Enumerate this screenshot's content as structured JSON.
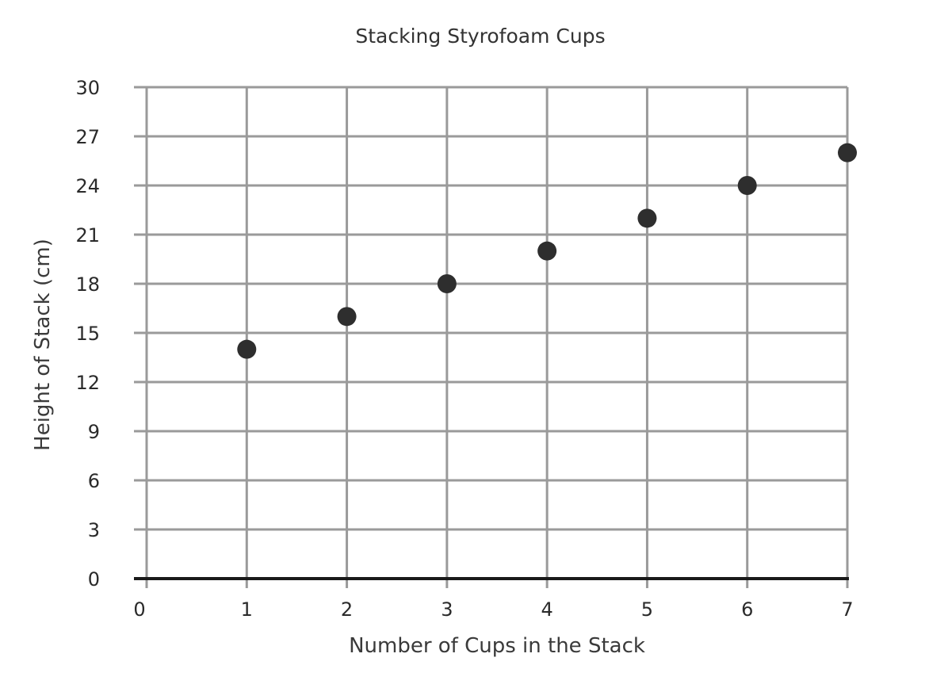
{
  "chart_data": {
    "type": "scatter",
    "title": "Stacking Styrofoam Cups",
    "xlabel": "Number of Cups in the Stack",
    "ylabel": "Height of Stack (cm)",
    "xlim": [
      0,
      7
    ],
    "ylim": [
      0,
      30
    ],
    "x_ticks": [
      "0",
      "1",
      "2",
      "3",
      "4",
      "5",
      "6",
      "7"
    ],
    "y_ticks": [
      "0",
      "3",
      "6",
      "9",
      "12",
      "15",
      "18",
      "21",
      "24",
      "27",
      "30"
    ],
    "grid": true,
    "point_color": "#2e2e2e",
    "points": [
      {
        "x": 1,
        "y": 14
      },
      {
        "x": 2,
        "y": 16
      },
      {
        "x": 3,
        "y": 18
      },
      {
        "x": 4,
        "y": 20
      },
      {
        "x": 5,
        "y": 22
      },
      {
        "x": 6,
        "y": 24
      },
      {
        "x": 7,
        "y": 26
      }
    ]
  }
}
